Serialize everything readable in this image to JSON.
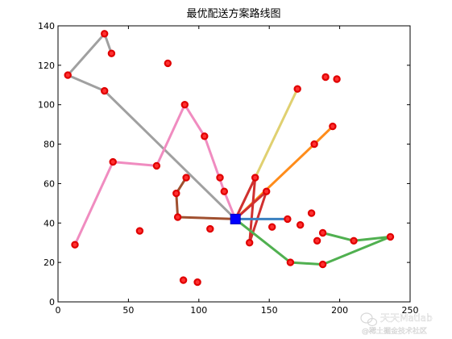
{
  "chart_data": {
    "type": "line",
    "title": "最优配送方案路线图",
    "xlabel": "",
    "ylabel": "",
    "xlim": [
      0,
      250
    ],
    "ylim": [
      0,
      140
    ],
    "xticks": [
      0,
      50,
      100,
      150,
      200,
      250
    ],
    "yticks": [
      0,
      20,
      40,
      60,
      80,
      100,
      120,
      140
    ],
    "grid": false,
    "depot": {
      "x": 126,
      "y": 42
    },
    "routes": [
      {
        "color": "#a0a0a0",
        "points": [
          [
            126,
            42
          ],
          [
            33,
            107
          ],
          [
            7,
            115
          ],
          [
            33,
            136
          ],
          [
            38,
            126
          ]
        ]
      },
      {
        "color": "#f08cc0",
        "points": [
          [
            126,
            42
          ],
          [
            118,
            56
          ],
          [
            104,
            84
          ],
          [
            90,
            100
          ],
          [
            70,
            69
          ],
          [
            39,
            71
          ],
          [
            12,
            29
          ]
        ]
      },
      {
        "color": "#e0d070",
        "points": [
          [
            126,
            42
          ],
          [
            170,
            108
          ]
        ]
      },
      {
        "color": "#ff8c1a",
        "points": [
          [
            126,
            42
          ],
          [
            182,
            80
          ],
          [
            195,
            89
          ]
        ]
      },
      {
        "color": "#d03030",
        "points": [
          [
            126,
            42
          ],
          [
            140,
            63
          ],
          [
            136,
            30
          ],
          [
            148,
            56
          ],
          [
            126,
            42
          ]
        ]
      },
      {
        "color": "#a05030",
        "points": [
          [
            126,
            42
          ],
          [
            85,
            43
          ],
          [
            84,
            55
          ],
          [
            91,
            63
          ]
        ]
      },
      {
        "color": "#3a80c0",
        "points": [
          [
            126,
            42
          ],
          [
            163,
            42
          ]
        ]
      },
      {
        "color": "#50b050",
        "points": [
          [
            126,
            42
          ],
          [
            165,
            20
          ],
          [
            188,
            19
          ],
          [
            236,
            33
          ],
          [
            210,
            31
          ],
          [
            188,
            35
          ]
        ]
      }
    ],
    "customers": [
      [
        33,
        136
      ],
      [
        38,
        126
      ],
      [
        7,
        115
      ],
      [
        33,
        107
      ],
      [
        78,
        121
      ],
      [
        190,
        114
      ],
      [
        198,
        113
      ],
      [
        170,
        108
      ],
      [
        90,
        100
      ],
      [
        195,
        89
      ],
      [
        104,
        84
      ],
      [
        182,
        80
      ],
      [
        39,
        71
      ],
      [
        70,
        69
      ],
      [
        91,
        63
      ],
      [
        115,
        63
      ],
      [
        140,
        63
      ],
      [
        118,
        56
      ],
      [
        148,
        56
      ],
      [
        84,
        55
      ],
      [
        180,
        45
      ],
      [
        85,
        43
      ],
      [
        163,
        42
      ],
      [
        172,
        39
      ],
      [
        152,
        38
      ],
      [
        108,
        37
      ],
      [
        58,
        36
      ],
      [
        188,
        35
      ],
      [
        236,
        33
      ],
      [
        210,
        31
      ],
      [
        184,
        31
      ],
      [
        136,
        30
      ],
      [
        12,
        29
      ],
      [
        165,
        20
      ],
      [
        188,
        19
      ],
      [
        89,
        11
      ],
      [
        99,
        10
      ]
    ]
  },
  "watermark": {
    "text": "天天Matlab",
    "sub": "@稀土掘金技术社区",
    "icon": "wechat-icon"
  }
}
